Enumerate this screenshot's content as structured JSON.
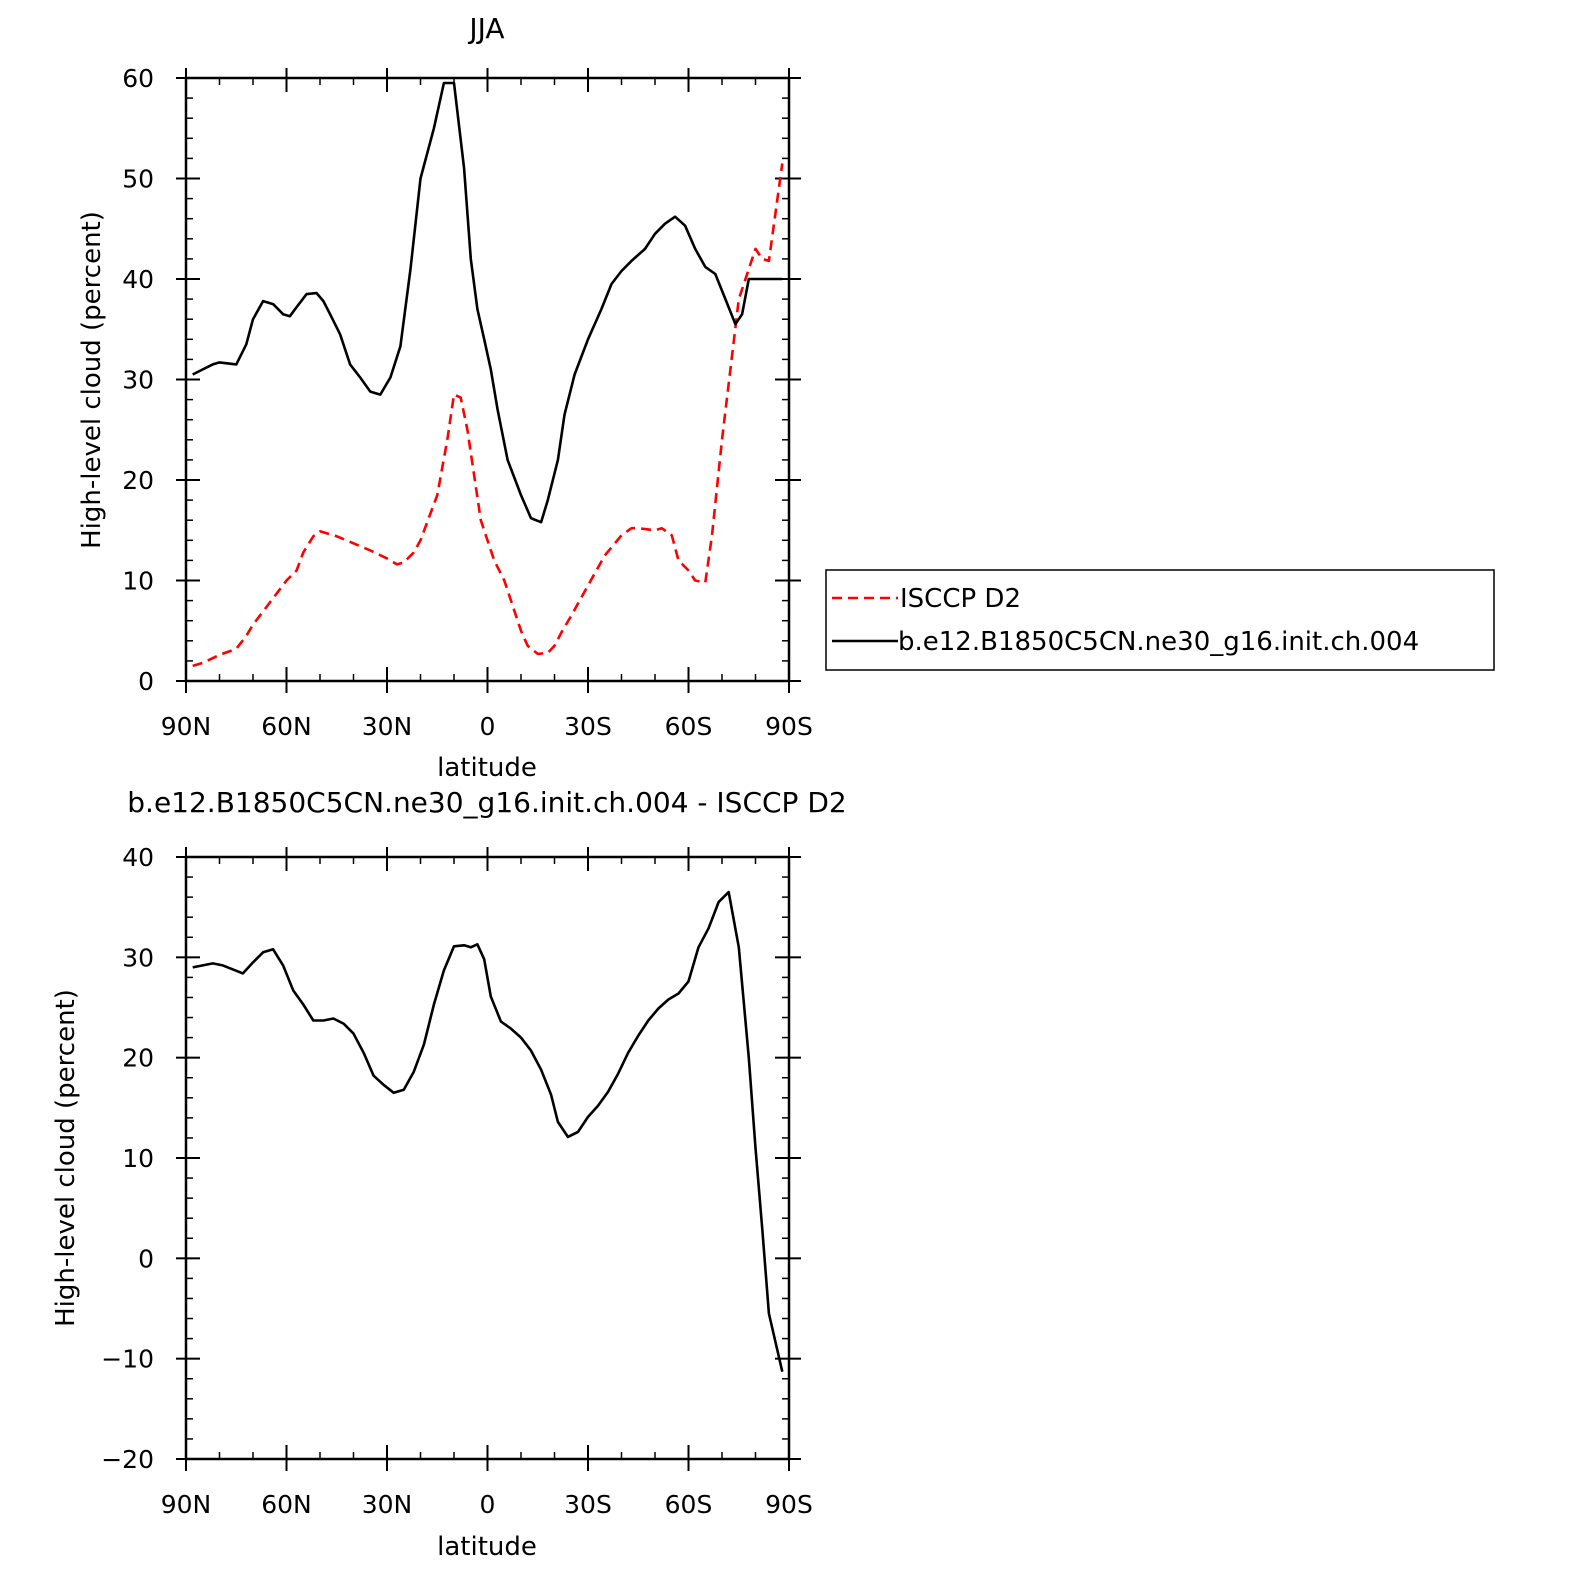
{
  "chart_data": [
    {
      "type": "line",
      "title": "JJA",
      "xlabel": "latitude",
      "ylabel": "High-level cloud (percent)",
      "xlim": [
        90,
        -90
      ],
      "ylim": [
        0,
        60
      ],
      "x_tick_values": [
        90,
        60,
        30,
        0,
        -30,
        -60,
        -90
      ],
      "x_tick_labels": [
        "90N",
        "60N",
        "30N",
        "0",
        "30S",
        "60S",
        "90S"
      ],
      "y_tick_values": [
        0,
        10,
        20,
        30,
        40,
        50,
        60
      ],
      "y_tick_labels": [
        "0",
        "10",
        "20",
        "30",
        "40",
        "50",
        "60"
      ],
      "grid": false,
      "legend_position": "right",
      "series": [
        {
          "name": "ISCCP D2",
          "color": "#ff0000",
          "dash": "dashed",
          "x": [
            88,
            85,
            80,
            75,
            72,
            70,
            65,
            60,
            57,
            55,
            52,
            50,
            45,
            40,
            35,
            30,
            27,
            25,
            22,
            20,
            18,
            15,
            12,
            10,
            8,
            6,
            4,
            2,
            0,
            -2,
            -5,
            -8,
            -10,
            -12,
            -15,
            -18,
            -20,
            -22,
            -25,
            -30,
            -35,
            -40,
            -43,
            -45,
            -50,
            -52,
            -55,
            -57,
            -60,
            -62,
            -65,
            -67,
            -70,
            -75,
            -80,
            -82,
            -84,
            -88
          ],
          "y": [
            1.5,
            1.8,
            2.6,
            3.2,
            4.5,
            5.6,
            7.8,
            10.0,
            11.0,
            12.8,
            14.4,
            14.9,
            14.4,
            13.7,
            13.0,
            12.2,
            11.6,
            11.8,
            12.8,
            14.0,
            15.8,
            18.5,
            24.0,
            28.5,
            28.2,
            25.0,
            20.5,
            16.0,
            14.0,
            12.0,
            10.0,
            7.0,
            5.0,
            3.5,
            2.7,
            2.8,
            3.5,
            4.8,
            6.5,
            9.5,
            12.5,
            14.5,
            15.2,
            15.2,
            15.0,
            15.2,
            14.5,
            12.0,
            11.0,
            10.0,
            9.8,
            14.5,
            24.0,
            38.0,
            43.0,
            42.0,
            41.8,
            51.5
          ]
        },
        {
          "name": "b.e12.B1850C5CN.ne30_g16.init.ch.004",
          "color": "#000000",
          "dash": "solid",
          "x": [
            88,
            85,
            82,
            80,
            75,
            72,
            70,
            67,
            64,
            61,
            59,
            57,
            54,
            51,
            49,
            47,
            44,
            41,
            38,
            35,
            32,
            29,
            26,
            23,
            20,
            16,
            13,
            10,
            7,
            5,
            3,
            1,
            -1,
            -3,
            -6,
            -10,
            -13,
            -16,
            -18,
            -21,
            -23,
            -26,
            -30,
            -34,
            -37,
            -40,
            -43,
            -47,
            -50,
            -53,
            -56,
            -59,
            -62,
            -65,
            -68,
            -71,
            -74,
            -76,
            -78,
            -81,
            -84,
            -88
          ],
          "y": [
            30.5,
            31.0,
            31.5,
            31.7,
            31.5,
            33.5,
            36.0,
            37.8,
            37.5,
            36.5,
            36.3,
            37.2,
            38.5,
            38.6,
            37.8,
            36.5,
            34.5,
            31.5,
            30.2,
            28.8,
            28.5,
            30.2,
            33.3,
            41.0,
            50.0,
            55.0,
            59.5,
            59.5,
            51.0,
            42.0,
            37.0,
            34.0,
            31.0,
            27.0,
            22.0,
            18.5,
            16.2,
            15.8,
            18.0,
            22.0,
            26.5,
            30.5,
            34.0,
            37.0,
            39.5,
            40.8,
            41.8,
            43.0,
            44.5,
            45.5,
            46.2,
            45.3,
            43.0,
            41.2,
            40.5,
            38.0,
            35.5,
            36.5,
            40.0,
            40.0,
            40.0,
            40.0
          ]
        }
      ]
    },
    {
      "type": "line",
      "title": "b.e12.B1850C5CN.ne30_g16.init.ch.004 - ISCCP D2",
      "xlabel": "latitude",
      "ylabel": "High-level cloud (percent)",
      "xlim": [
        90,
        -90
      ],
      "ylim": [
        -20,
        40
      ],
      "x_tick_values": [
        90,
        60,
        30,
        0,
        -30,
        -60,
        -90
      ],
      "x_tick_labels": [
        "90N",
        "60N",
        "30N",
        "0",
        "30S",
        "60S",
        "90S"
      ],
      "y_tick_values": [
        -20,
        -10,
        0,
        10,
        20,
        30,
        40
      ],
      "y_tick_labels": [
        "−20",
        "−10",
        "0",
        "10",
        "20",
        "30",
        "40"
      ],
      "grid": false,
      "series": [
        {
          "color": "#000000",
          "dash": "solid",
          "x": [
            88,
            85,
            82,
            79,
            76,
            73,
            70,
            67,
            64,
            61,
            58,
            55,
            52,
            49,
            46,
            43,
            40,
            37,
            34,
            31,
            28,
            25,
            22,
            19,
            16,
            13,
            10,
            7,
            5,
            3,
            1,
            -1,
            -4,
            -7,
            -10,
            -13,
            -16,
            -19,
            -21,
            -24,
            -27,
            -30,
            -33,
            -36,
            -39,
            -42,
            -45,
            -48,
            -51,
            -54,
            -57,
            -60,
            -63,
            -66,
            -69,
            -72,
            -75,
            -78,
            -80,
            -82,
            -84,
            -88
          ],
          "y": [
            29.0,
            29.2,
            29.4,
            29.2,
            28.8,
            28.4,
            29.5,
            30.5,
            30.8,
            29.2,
            26.7,
            25.3,
            23.7,
            23.7,
            23.9,
            23.4,
            22.4,
            20.5,
            18.2,
            17.3,
            16.5,
            16.8,
            18.6,
            21.3,
            25.3,
            28.7,
            31.1,
            31.2,
            31.0,
            31.3,
            29.8,
            26.1,
            23.6,
            22.9,
            22.0,
            20.7,
            18.8,
            16.3,
            13.6,
            12.1,
            12.6,
            14.1,
            15.2,
            16.6,
            18.4,
            20.5,
            22.2,
            23.7,
            24.9,
            25.8,
            26.4,
            27.6,
            31.0,
            32.9,
            35.5,
            36.5,
            31.0,
            20.0,
            11.0,
            3.0,
            -5.5,
            -11.3
          ]
        }
      ]
    }
  ]
}
